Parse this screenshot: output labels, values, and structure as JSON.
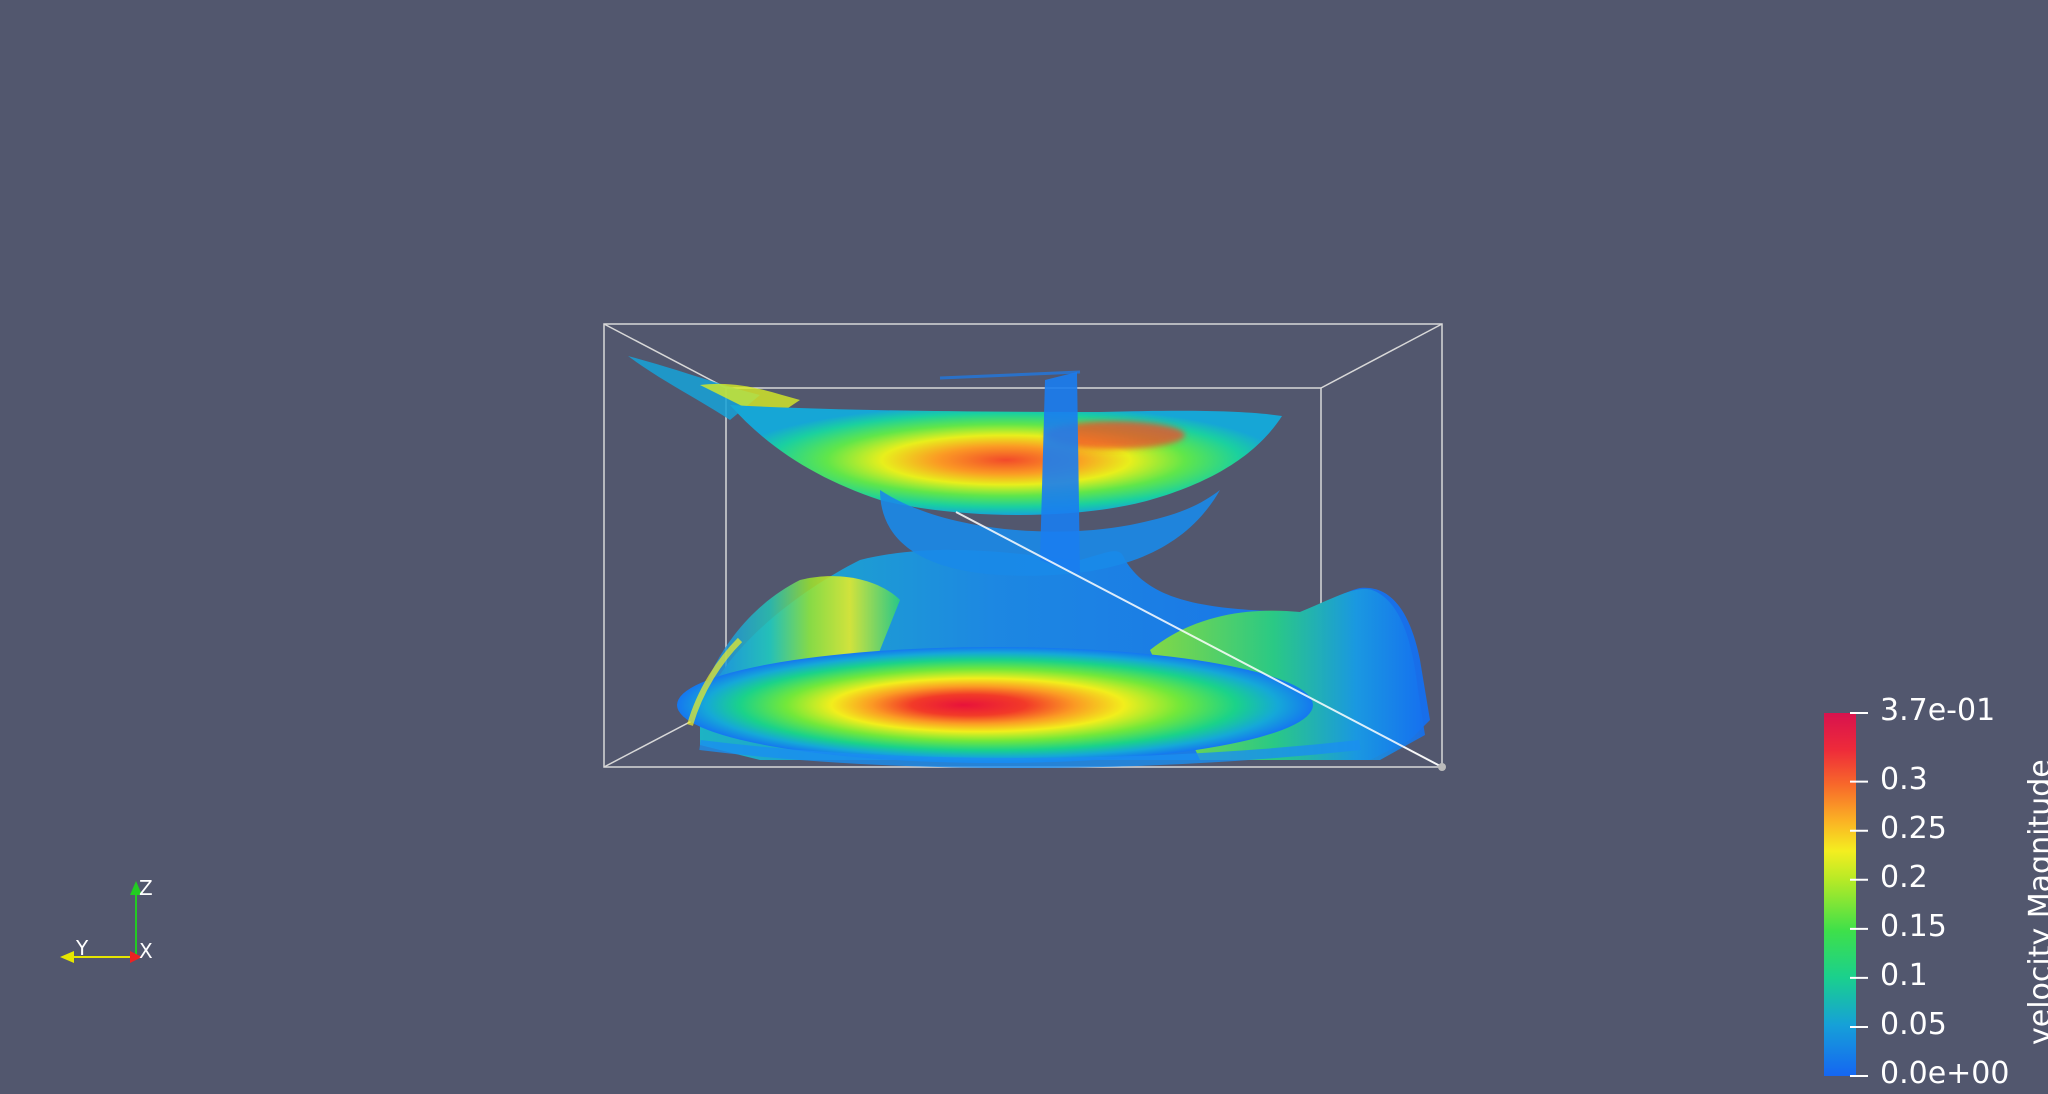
{
  "app": "ParaView render view",
  "background_color": "#52576e",
  "scene": {
    "object": "streamlines",
    "outline_color": "#d8d8d8",
    "colormap": "rainbow (blue-cyan-green-yellow-orange-red-magenta)"
  },
  "orientation_axes": {
    "z_label": "Z",
    "y_label": "Y",
    "x_label": "X",
    "z_color": "#22cc22",
    "y_color": "#e6e600",
    "x_color": "#ee2222"
  },
  "color_legend": {
    "title": "velocity Magnitude",
    "range": [
      0.0,
      0.37
    ],
    "ticks": [
      {
        "label": "3.7e-01",
        "value": 0.37
      },
      {
        "label": "0.3",
        "value": 0.3
      },
      {
        "label": "0.25",
        "value": 0.25
      },
      {
        "label": "0.2",
        "value": 0.2
      },
      {
        "label": "0.15",
        "value": 0.15
      },
      {
        "label": "0.1",
        "value": 0.1
      },
      {
        "label": "0.05",
        "value": 0.05
      },
      {
        "label": "0.0e+00",
        "value": 0.0
      }
    ]
  }
}
